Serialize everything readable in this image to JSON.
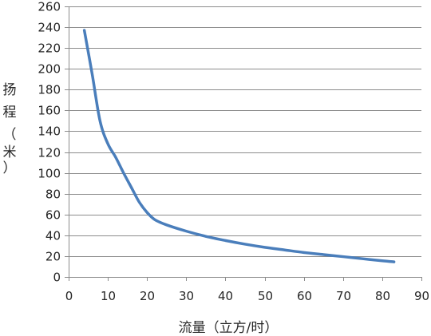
{
  "chart_data": {
    "type": "line",
    "title": "",
    "xlabel": "流量（立方/时）",
    "ylabel_chars": [
      "扬",
      "程",
      "（",
      "米",
      "）"
    ],
    "xlim": [
      0,
      90
    ],
    "ylim": [
      0,
      260
    ],
    "x_ticks": [
      0,
      10,
      20,
      30,
      40,
      50,
      60,
      70,
      80,
      90
    ],
    "y_ticks": [
      0,
      20,
      40,
      60,
      80,
      100,
      120,
      140,
      160,
      180,
      200,
      220,
      240,
      260
    ],
    "grid": {
      "horizontal": true,
      "vertical": false
    },
    "legend": "none",
    "series": [
      {
        "color": "#4a7ebb",
        "x": [
          4,
          6,
          8,
          10,
          12,
          14,
          16,
          18,
          20,
          22,
          25,
          30,
          35,
          40,
          45,
          50,
          55,
          60,
          65,
          70,
          75,
          80,
          83
        ],
        "y": [
          237,
          195,
          150,
          128,
          115,
          100,
          86,
          72,
          62,
          55,
          50,
          44,
          39,
          35,
          31.5,
          28.5,
          26,
          23.5,
          21.5,
          19.5,
          17.5,
          15.5,
          14.5
        ]
      }
    ]
  }
}
